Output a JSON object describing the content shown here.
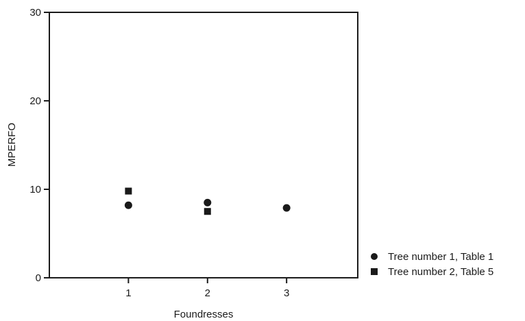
{
  "chart_data": {
    "type": "scatter",
    "title": "",
    "xlabel": "Foundresses",
    "ylabel": "MPERFO",
    "xlim": [
      0,
      3.9
    ],
    "ylim": [
      0,
      30
    ],
    "xticks": [
      1,
      2,
      3
    ],
    "yticks": [
      0,
      10,
      20,
      30
    ],
    "grid": false,
    "legend_position": "right",
    "series": [
      {
        "name": "Tree number 1, Table 1",
        "marker": "circle",
        "color": "#1a1a1a",
        "points": [
          {
            "x": 1,
            "y": 8.2
          },
          {
            "x": 2,
            "y": 8.5
          },
          {
            "x": 3,
            "y": 7.9
          }
        ]
      },
      {
        "name": "Tree number 2, Table 5",
        "marker": "square",
        "color": "#1a1a1a",
        "points": [
          {
            "x": 1,
            "y": 9.8
          },
          {
            "x": 2,
            "y": 7.5
          }
        ]
      }
    ]
  }
}
